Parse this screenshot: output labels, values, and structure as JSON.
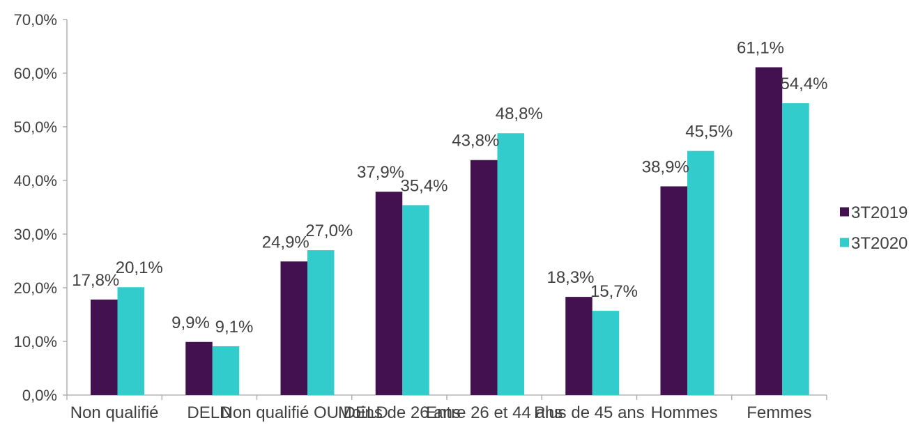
{
  "chart_data": {
    "type": "bar",
    "title": "",
    "xlabel": "",
    "ylabel": "",
    "ylim": [
      0,
      70
    ],
    "y_ticks": [
      "0,0%",
      "10,0%",
      "20,0%",
      "30,0%",
      "40,0%",
      "50,0%",
      "60,0%",
      "70,0%"
    ],
    "grid": false,
    "legend_position": "right",
    "categories": [
      "Non qualifié",
      "DELD",
      "Non qualifié OU DELD",
      "Moins de 26 ans",
      "Entre 26 et 44 ans",
      "Plus de 45 ans",
      "Hommes",
      "Femmes"
    ],
    "series": [
      {
        "name": "3T2019",
        "color": "#43114f",
        "values": [
          17.8,
          9.9,
          24.9,
          37.9,
          43.8,
          18.3,
          38.9,
          61.1
        ],
        "labels": [
          "17,8%",
          "9,9%",
          "24,9%",
          "37,9%",
          "43,8%",
          "18,3%",
          "38,9%",
          "61,1%"
        ]
      },
      {
        "name": "3T2020",
        "color": "#33cccc",
        "values": [
          20.1,
          9.1,
          27.0,
          35.4,
          48.8,
          15.7,
          45.5,
          54.4
        ],
        "labels": [
          "20,1%",
          "9,1%",
          "27,0%",
          "35,4%",
          "48,8%",
          "15,7%",
          "45,5%",
          "54,4%"
        ]
      }
    ]
  }
}
